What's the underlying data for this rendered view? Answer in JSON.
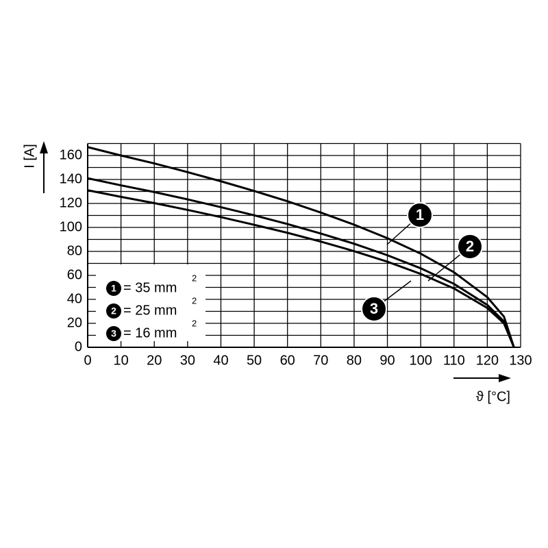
{
  "chart_data": {
    "type": "line",
    "x_label": "ϑ [°C]",
    "y_label": "I [A]",
    "xlim": [
      0,
      130
    ],
    "xticks": [
      0,
      10,
      20,
      30,
      40,
      50,
      60,
      70,
      80,
      90,
      100,
      110,
      120,
      130
    ],
    "ylim": [
      0,
      170
    ],
    "yticks": [
      0,
      20,
      40,
      60,
      80,
      100,
      120,
      140,
      160
    ],
    "y_gridlines": [
      0,
      10,
      20,
      30,
      40,
      50,
      60,
      70,
      80,
      90,
      100,
      110,
      120,
      130,
      140,
      150,
      160,
      170
    ],
    "grid": true,
    "x": [
      0,
      10,
      20,
      30,
      40,
      50,
      60,
      70,
      80,
      90,
      100,
      110,
      120,
      125,
      128
    ],
    "series": [
      {
        "label": "1",
        "name": "= 35 mm",
        "superscript": "2",
        "color": "#000000",
        "values": [
          167,
          160,
          153.4,
          146.1,
          138.5,
          130.4,
          121.8,
          112.4,
          102.3,
          91,
          78.1,
          62.6,
          41.8,
          25.6,
          0
        ]
      },
      {
        "label": "2",
        "name": "= 25 mm",
        "superscript": "2",
        "color": "#000000",
        "values": [
          141,
          135.1,
          129.5,
          123.4,
          116.9,
          110.1,
          102.8,
          94.9,
          86.4,
          76.8,
          65.9,
          52.9,
          35.3,
          21.6,
          0
        ]
      },
      {
        "label": "3",
        "name": "= 16 mm",
        "superscript": "2",
        "color": "#000000",
        "values": [
          131,
          125.5,
          120.3,
          114.6,
          108.6,
          102.2,
          95.5,
          88.2,
          80.2,
          71.4,
          61.2,
          49.1,
          32.8,
          20,
          0
        ]
      }
    ]
  }
}
